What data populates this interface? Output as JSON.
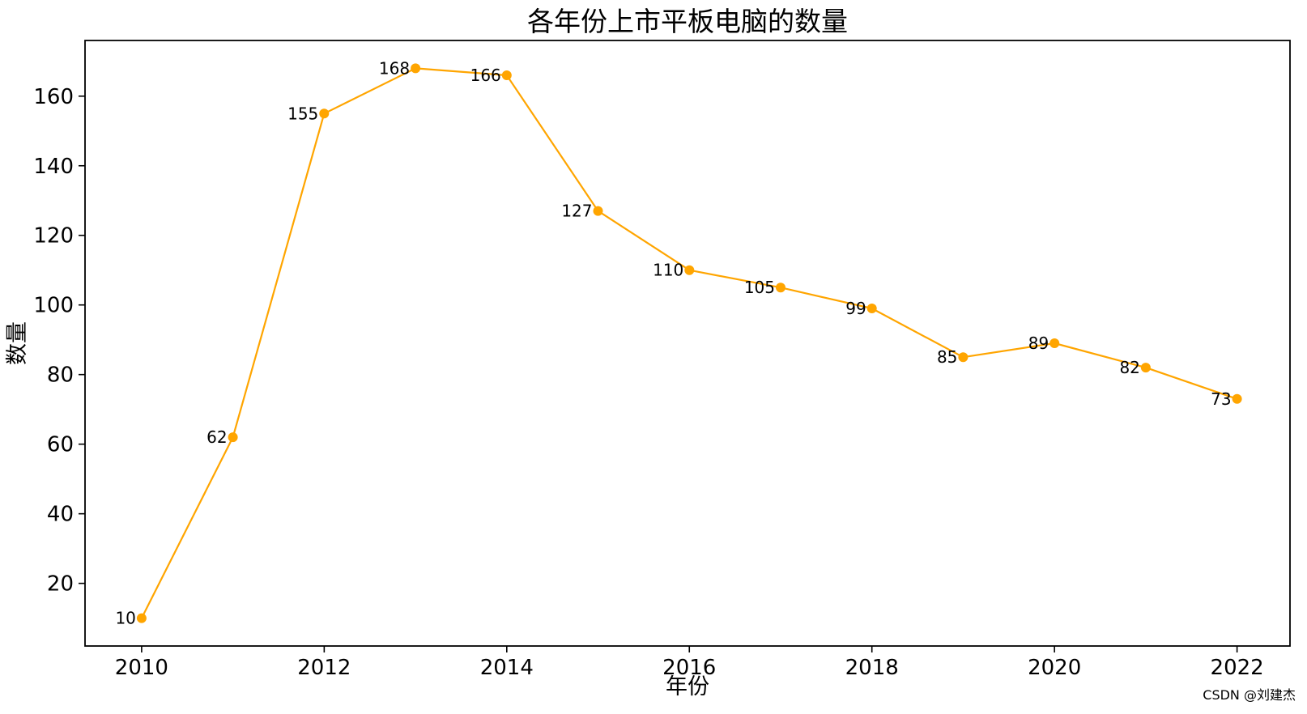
{
  "figure": {
    "title": "各年份上市平板电脑的数量",
    "watermark": "CSDN @刘建杰"
  },
  "chart_data": {
    "type": "line",
    "title": "各年份上市平板电脑的数量",
    "xlabel": "年份",
    "ylabel": "数量",
    "x": [
      2010,
      2011,
      2012,
      2013,
      2014,
      2015,
      2016,
      2017,
      2018,
      2019,
      2020,
      2021,
      2022
    ],
    "series": [
      {
        "name": "数量",
        "values": [
          10,
          62,
          155,
          168,
          166,
          127,
          110,
          105,
          99,
          85,
          89,
          82,
          73
        ]
      }
    ],
    "point_labels": [
      "10",
      "62",
      "155",
      "168",
      "166",
      "127",
      "110",
      "105",
      "99",
      "85",
      "89",
      "82",
      "73"
    ],
    "xticks": [
      2010,
      2012,
      2014,
      2016,
      2018,
      2020,
      2022
    ],
    "yticks": [
      20,
      40,
      60,
      80,
      100,
      120,
      140,
      160
    ],
    "xlim": [
      2009.38,
      2022.58
    ],
    "ylim": [
      2,
      176
    ],
    "grid": false,
    "legend": "none",
    "line_color": "#FFA500",
    "marker_color": "#FFA500",
    "spine_color": "#000000",
    "text_color": "#000000",
    "watermark_color": "#b3b7bb"
  }
}
